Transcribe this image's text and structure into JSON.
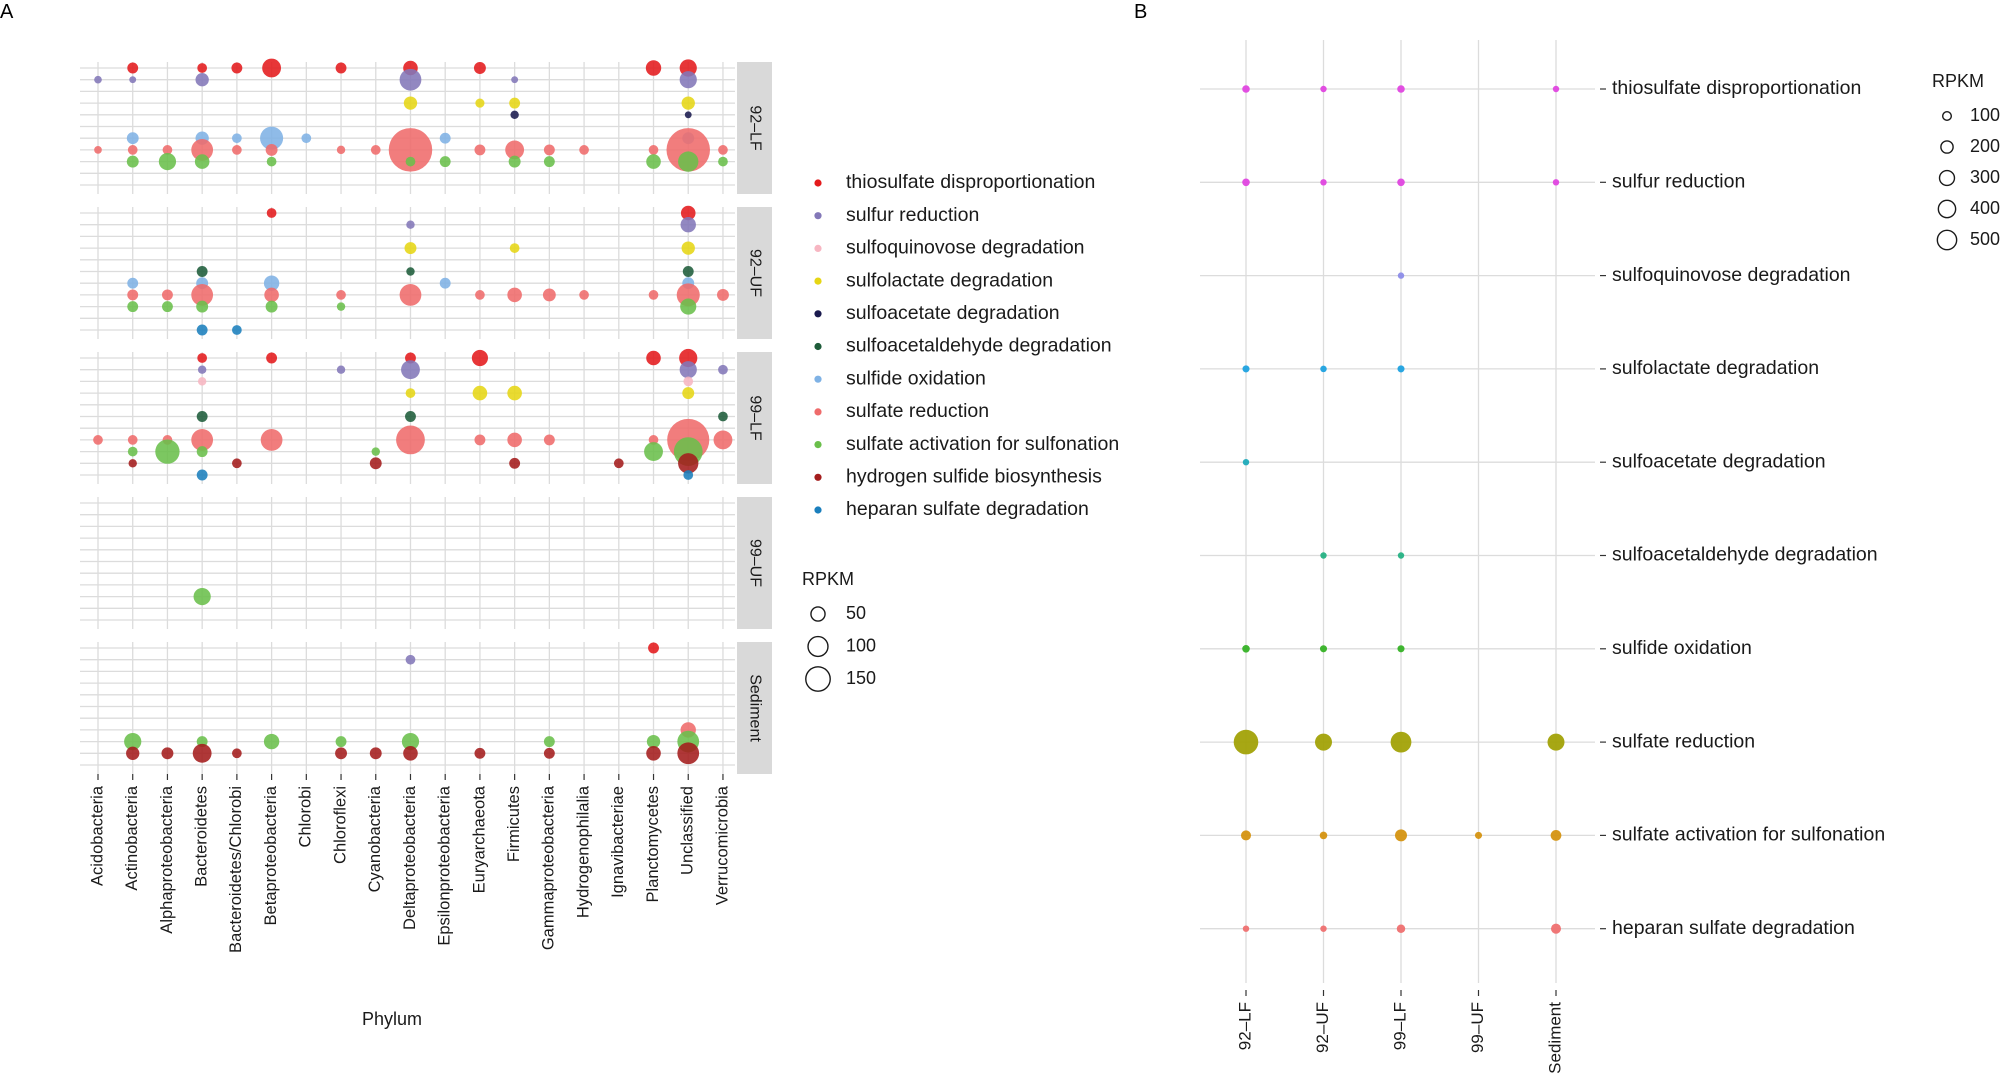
{
  "chart_data": [
    {
      "panel": "A",
      "type": "scatter",
      "xlabel": "Phylum",
      "categories": [
        "Acidobacteria",
        "Actinobacteria",
        "Alphaproteobacteria",
        "Bacteroidetes",
        "Bacteroidetes/Chlorobi",
        "Betaproteobacteria",
        "Chlorobi",
        "Chloroflexi",
        "Cyanobacteria",
        "Deltaproteobacteria",
        "Epsilonproteobacteria",
        "Euryarchaeota",
        "Firmicutes",
        "Gammaproteobacteria",
        "Hydrogenophilalia",
        "Ignavibacteriae",
        "Planctomycetes",
        "Unclassified",
        "Verrucomicrobia"
      ],
      "facets": [
        "92–LF",
        "92–UF",
        "99–LF",
        "99–UF",
        "Sediment"
      ],
      "pathways": [
        "thiosulfate disproportionation",
        "sulfur reduction",
        "sulfoquinovose degradation",
        "sulfolactate degradation",
        "sulfoacetate degradation",
        "sulfoacetaldehyde degradation",
        "sulfide oxidation",
        "sulfate reduction",
        "sulfate activation for sulfonation",
        "hydrogen sulfide biosynthesis",
        "heparan sulfate degradation"
      ],
      "colors": [
        "#e41a1c",
        "#8378b8",
        "#f7b6c2",
        "#e6d614",
        "#1a1a4e",
        "#1e5c3a",
        "#7fb2e5",
        "#ef6b6b",
        "#6abf4b",
        "#a41d1d",
        "#1b7fbd"
      ],
      "legend_title": "RPKM",
      "size_breaks": [
        50,
        100,
        150
      ],
      "size_labels": [
        "50",
        "100",
        "150"
      ],
      "points": [
        {
          "facet": 0,
          "x": 1,
          "p": 0,
          "v": 10
        },
        {
          "facet": 0,
          "x": 3,
          "p": 0,
          "v": 8
        },
        {
          "facet": 0,
          "x": 4,
          "p": 0,
          "v": 10
        },
        {
          "facet": 0,
          "x": 5,
          "p": 0,
          "v": 30
        },
        {
          "facet": 0,
          "x": 7,
          "p": 0,
          "v": 10
        },
        {
          "facet": 0,
          "x": 9,
          "p": 0,
          "v": 18
        },
        {
          "facet": 0,
          "x": 11,
          "p": 0,
          "v": 12
        },
        {
          "facet": 0,
          "x": 16,
          "p": 0,
          "v": 20
        },
        {
          "facet": 0,
          "x": 17,
          "p": 0,
          "v": 25
        },
        {
          "facet": 0,
          "x": 0,
          "p": 1,
          "v": 5
        },
        {
          "facet": 0,
          "x": 1,
          "p": 1,
          "v": 4
        },
        {
          "facet": 0,
          "x": 3,
          "p": 1,
          "v": 15
        },
        {
          "facet": 0,
          "x": 9,
          "p": 1,
          "v": 40
        },
        {
          "facet": 0,
          "x": 12,
          "p": 1,
          "v": 4
        },
        {
          "facet": 0,
          "x": 17,
          "p": 1,
          "v": 25
        },
        {
          "facet": 0,
          "x": 9,
          "p": 3,
          "v": 15
        },
        {
          "facet": 0,
          "x": 11,
          "p": 3,
          "v": 7
        },
        {
          "facet": 0,
          "x": 12,
          "p": 3,
          "v": 10
        },
        {
          "facet": 0,
          "x": 17,
          "p": 3,
          "v": 15
        },
        {
          "facet": 0,
          "x": 12,
          "p": 4,
          "v": 6
        },
        {
          "facet": 0,
          "x": 17,
          "p": 4,
          "v": 4
        },
        {
          "facet": 0,
          "x": 1,
          "p": 6,
          "v": 12
        },
        {
          "facet": 0,
          "x": 3,
          "p": 6,
          "v": 15
        },
        {
          "facet": 0,
          "x": 4,
          "p": 6,
          "v": 8
        },
        {
          "facet": 0,
          "x": 5,
          "p": 6,
          "v": 45
        },
        {
          "facet": 0,
          "x": 6,
          "p": 6,
          "v": 8
        },
        {
          "facet": 0,
          "x": 10,
          "p": 6,
          "v": 10
        },
        {
          "facet": 0,
          "x": 17,
          "p": 6,
          "v": 12
        },
        {
          "facet": 0,
          "x": 0,
          "p": 7,
          "v": 5
        },
        {
          "facet": 0,
          "x": 1,
          "p": 7,
          "v": 8
        },
        {
          "facet": 0,
          "x": 2,
          "p": 7,
          "v": 8
        },
        {
          "facet": 0,
          "x": 3,
          "p": 7,
          "v": 40
        },
        {
          "facet": 0,
          "x": 4,
          "p": 7,
          "v": 8
        },
        {
          "facet": 0,
          "x": 5,
          "p": 7,
          "v": 12
        },
        {
          "facet": 0,
          "x": 7,
          "p": 7,
          "v": 6
        },
        {
          "facet": 0,
          "x": 8,
          "p": 7,
          "v": 8
        },
        {
          "facet": 0,
          "x": 9,
          "p": 7,
          "v": 160
        },
        {
          "facet": 0,
          "x": 11,
          "p": 7,
          "v": 10
        },
        {
          "facet": 0,
          "x": 12,
          "p": 7,
          "v": 30
        },
        {
          "facet": 0,
          "x": 13,
          "p": 7,
          "v": 10
        },
        {
          "facet": 0,
          "x": 14,
          "p": 7,
          "v": 8
        },
        {
          "facet": 0,
          "x": 16,
          "p": 7,
          "v": 8
        },
        {
          "facet": 0,
          "x": 17,
          "p": 7,
          "v": 160
        },
        {
          "facet": 0,
          "x": 18,
          "p": 7,
          "v": 8
        },
        {
          "facet": 0,
          "x": 1,
          "p": 8,
          "v": 12
        },
        {
          "facet": 0,
          "x": 2,
          "p": 8,
          "v": 25
        },
        {
          "facet": 0,
          "x": 3,
          "p": 8,
          "v": 18
        },
        {
          "facet": 0,
          "x": 5,
          "p": 8,
          "v": 8
        },
        {
          "facet": 0,
          "x": 9,
          "p": 8,
          "v": 8
        },
        {
          "facet": 0,
          "x": 10,
          "p": 8,
          "v": 10
        },
        {
          "facet": 0,
          "x": 12,
          "p": 8,
          "v": 12
        },
        {
          "facet": 0,
          "x": 13,
          "p": 8,
          "v": 10
        },
        {
          "facet": 0,
          "x": 16,
          "p": 8,
          "v": 18
        },
        {
          "facet": 0,
          "x": 17,
          "p": 8,
          "v": 35
        },
        {
          "facet": 0,
          "x": 18,
          "p": 8,
          "v": 8
        },
        {
          "facet": 1,
          "x": 5,
          "p": 0,
          "v": 8
        },
        {
          "facet": 1,
          "x": 17,
          "p": 0,
          "v": 18
        },
        {
          "facet": 1,
          "x": 9,
          "p": 1,
          "v": 6
        },
        {
          "facet": 1,
          "x": 17,
          "p": 1,
          "v": 20
        },
        {
          "facet": 1,
          "x": 9,
          "p": 3,
          "v": 12
        },
        {
          "facet": 1,
          "x": 12,
          "p": 3,
          "v": 8
        },
        {
          "facet": 1,
          "x": 17,
          "p": 3,
          "v": 15
        },
        {
          "facet": 1,
          "x": 3,
          "p": 5,
          "v": 10
        },
        {
          "facet": 1,
          "x": 9,
          "p": 5,
          "v": 6
        },
        {
          "facet": 1,
          "x": 17,
          "p": 5,
          "v": 10
        },
        {
          "facet": 1,
          "x": 1,
          "p": 6,
          "v": 10
        },
        {
          "facet": 1,
          "x": 3,
          "p": 6,
          "v": 12
        },
        {
          "facet": 1,
          "x": 5,
          "p": 6,
          "v": 20
        },
        {
          "facet": 1,
          "x": 10,
          "p": 6,
          "v": 10
        },
        {
          "facet": 1,
          "x": 17,
          "p": 6,
          "v": 12
        },
        {
          "facet": 1,
          "x": 1,
          "p": 7,
          "v": 10
        },
        {
          "facet": 1,
          "x": 2,
          "p": 7,
          "v": 10
        },
        {
          "facet": 1,
          "x": 3,
          "p": 7,
          "v": 40
        },
        {
          "facet": 1,
          "x": 5,
          "p": 7,
          "v": 18
        },
        {
          "facet": 1,
          "x": 7,
          "p": 7,
          "v": 8
        },
        {
          "facet": 1,
          "x": 9,
          "p": 7,
          "v": 40
        },
        {
          "facet": 1,
          "x": 11,
          "p": 7,
          "v": 8
        },
        {
          "facet": 1,
          "x": 12,
          "p": 7,
          "v": 18
        },
        {
          "facet": 1,
          "x": 13,
          "p": 7,
          "v": 14
        },
        {
          "facet": 1,
          "x": 14,
          "p": 7,
          "v": 8
        },
        {
          "facet": 1,
          "x": 16,
          "p": 7,
          "v": 8
        },
        {
          "facet": 1,
          "x": 17,
          "p": 7,
          "v": 45
        },
        {
          "facet": 1,
          "x": 18,
          "p": 7,
          "v": 12
        },
        {
          "facet": 1,
          "x": 1,
          "p": 8,
          "v": 10
        },
        {
          "facet": 1,
          "x": 2,
          "p": 8,
          "v": 10
        },
        {
          "facet": 1,
          "x": 3,
          "p": 8,
          "v": 12
        },
        {
          "facet": 1,
          "x": 5,
          "p": 8,
          "v": 12
        },
        {
          "facet": 1,
          "x": 7,
          "p": 8,
          "v": 6
        },
        {
          "facet": 1,
          "x": 17,
          "p": 8,
          "v": 22
        },
        {
          "facet": 1,
          "x": 3,
          "p": 10,
          "v": 10
        },
        {
          "facet": 1,
          "x": 4,
          "p": 10,
          "v": 8
        },
        {
          "facet": 2,
          "x": 3,
          "p": 0,
          "v": 8
        },
        {
          "facet": 2,
          "x": 5,
          "p": 0,
          "v": 10
        },
        {
          "facet": 2,
          "x": 9,
          "p": 0,
          "v": 10
        },
        {
          "facet": 2,
          "x": 11,
          "p": 0,
          "v": 22
        },
        {
          "facet": 2,
          "x": 16,
          "p": 0,
          "v": 18
        },
        {
          "facet": 2,
          "x": 17,
          "p": 0,
          "v": 28
        },
        {
          "facet": 2,
          "x": 3,
          "p": 1,
          "v": 6
        },
        {
          "facet": 2,
          "x": 7,
          "p": 1,
          "v": 6
        },
        {
          "facet": 2,
          "x": 9,
          "p": 1,
          "v": 30
        },
        {
          "facet": 2,
          "x": 17,
          "p": 1,
          "v": 25
        },
        {
          "facet": 2,
          "x": 18,
          "p": 1,
          "v": 8
        },
        {
          "facet": 2,
          "x": 3,
          "p": 2,
          "v": 6
        },
        {
          "facet": 2,
          "x": 17,
          "p": 2,
          "v": 8
        },
        {
          "facet": 2,
          "x": 9,
          "p": 3,
          "v": 8
        },
        {
          "facet": 2,
          "x": 11,
          "p": 3,
          "v": 18
        },
        {
          "facet": 2,
          "x": 12,
          "p": 3,
          "v": 18
        },
        {
          "facet": 2,
          "x": 17,
          "p": 3,
          "v": 12
        },
        {
          "facet": 2,
          "x": 3,
          "p": 5,
          "v": 10
        },
        {
          "facet": 2,
          "x": 9,
          "p": 5,
          "v": 10
        },
        {
          "facet": 2,
          "x": 18,
          "p": 5,
          "v": 8
        },
        {
          "facet": 2,
          "x": 0,
          "p": 7,
          "v": 8
        },
        {
          "facet": 2,
          "x": 1,
          "p": 7,
          "v": 8
        },
        {
          "facet": 2,
          "x": 2,
          "p": 7,
          "v": 8
        },
        {
          "facet": 2,
          "x": 3,
          "p": 7,
          "v": 40
        },
        {
          "facet": 2,
          "x": 5,
          "p": 7,
          "v": 40
        },
        {
          "facet": 2,
          "x": 9,
          "p": 7,
          "v": 70
        },
        {
          "facet": 2,
          "x": 11,
          "p": 7,
          "v": 10
        },
        {
          "facet": 2,
          "x": 12,
          "p": 7,
          "v": 18
        },
        {
          "facet": 2,
          "x": 13,
          "p": 7,
          "v": 10
        },
        {
          "facet": 2,
          "x": 16,
          "p": 7,
          "v": 8
        },
        {
          "facet": 2,
          "x": 17,
          "p": 7,
          "v": 150
        },
        {
          "facet": 2,
          "x": 18,
          "p": 7,
          "v": 30
        },
        {
          "facet": 2,
          "x": 1,
          "p": 8,
          "v": 8
        },
        {
          "facet": 2,
          "x": 2,
          "p": 8,
          "v": 50
        },
        {
          "facet": 2,
          "x": 3,
          "p": 8,
          "v": 10
        },
        {
          "facet": 2,
          "x": 8,
          "p": 8,
          "v": 6
        },
        {
          "facet": 2,
          "x": 16,
          "p": 8,
          "v": 30
        },
        {
          "facet": 2,
          "x": 17,
          "p": 8,
          "v": 70
        },
        {
          "facet": 2,
          "x": 1,
          "p": 9,
          "v": 6
        },
        {
          "facet": 2,
          "x": 4,
          "p": 9,
          "v": 8
        },
        {
          "facet": 2,
          "x": 8,
          "p": 9,
          "v": 12
        },
        {
          "facet": 2,
          "x": 12,
          "p": 9,
          "v": 10
        },
        {
          "facet": 2,
          "x": 15,
          "p": 9,
          "v": 8
        },
        {
          "facet": 2,
          "x": 17,
          "p": 9,
          "v": 35
        },
        {
          "facet": 2,
          "x": 3,
          "p": 10,
          "v": 10
        },
        {
          "facet": 2,
          "x": 17,
          "p": 10,
          "v": 8
        },
        {
          "facet": 3,
          "x": 3,
          "p": 8,
          "v": 25
        },
        {
          "facet": 4,
          "x": 16,
          "p": 0,
          "v": 10
        },
        {
          "facet": 4,
          "x": 9,
          "p": 1,
          "v": 8
        },
        {
          "facet": 4,
          "x": 17,
          "p": 7,
          "v": 20
        },
        {
          "facet": 4,
          "x": 1,
          "p": 8,
          "v": 25
        },
        {
          "facet": 4,
          "x": 3,
          "p": 8,
          "v": 10
        },
        {
          "facet": 4,
          "x": 5,
          "p": 8,
          "v": 20
        },
        {
          "facet": 4,
          "x": 7,
          "p": 8,
          "v": 10
        },
        {
          "facet": 4,
          "x": 9,
          "p": 8,
          "v": 25
        },
        {
          "facet": 4,
          "x": 13,
          "p": 8,
          "v": 10
        },
        {
          "facet": 4,
          "x": 16,
          "p": 8,
          "v": 15
        },
        {
          "facet": 4,
          "x": 17,
          "p": 8,
          "v": 40
        },
        {
          "facet": 4,
          "x": 1,
          "p": 9,
          "v": 15
        },
        {
          "facet": 4,
          "x": 2,
          "p": 9,
          "v": 12
        },
        {
          "facet": 4,
          "x": 3,
          "p": 9,
          "v": 30
        },
        {
          "facet": 4,
          "x": 4,
          "p": 9,
          "v": 8
        },
        {
          "facet": 4,
          "x": 7,
          "p": 9,
          "v": 12
        },
        {
          "facet": 4,
          "x": 8,
          "p": 9,
          "v": 12
        },
        {
          "facet": 4,
          "x": 9,
          "p": 9,
          "v": 18
        },
        {
          "facet": 4,
          "x": 11,
          "p": 9,
          "v": 10
        },
        {
          "facet": 4,
          "x": 13,
          "p": 9,
          "v": 10
        },
        {
          "facet": 4,
          "x": 16,
          "p": 9,
          "v": 18
        },
        {
          "facet": 4,
          "x": 17,
          "p": 9,
          "v": 40
        }
      ]
    },
    {
      "panel": "B",
      "type": "scatter",
      "xlabel": "",
      "categories": [
        "92–LF",
        "92–UF",
        "99–LF",
        "99–UF",
        "Sediment"
      ],
      "pathways": [
        "thiosulfate disproportionation",
        "sulfur reduction",
        "sulfoquinovose degradation",
        "sulfolactate degradation",
        "sulfoacetate degradation",
        "sulfoacetaldehyde degradation",
        "sulfide oxidation",
        "sulfate reduction",
        "sulfate activation for sulfonation",
        "heparan sulfate degradation"
      ],
      "colors": [
        "#e040e0",
        "#e040e0",
        "#8a8ae8",
        "#18a0e0",
        "#18a8b8",
        "#20b080",
        "#30b020",
        "#a0a000",
        "#d4900a",
        "#ef6b6b"
      ],
      "legend_title": "RPKM",
      "size_breaks": [
        100,
        200,
        300,
        400,
        500
      ],
      "size_labels": [
        "100",
        "200",
        "300",
        "400",
        "500"
      ],
      "values": [
        [
          40,
          25,
          40,
          0,
          15
        ],
        [
          40,
          25,
          40,
          0,
          10
        ],
        [
          0,
          0,
          15,
          0,
          0
        ],
        [
          35,
          30,
          35,
          0,
          0
        ],
        [
          15,
          0,
          0,
          0,
          0
        ],
        [
          0,
          15,
          15,
          0,
          0
        ],
        [
          40,
          35,
          35,
          0,
          0
        ],
        [
          420,
          200,
          300,
          0,
          200
        ],
        [
          70,
          40,
          100,
          35,
          80
        ],
        [
          20,
          20,
          50,
          0,
          70
        ]
      ]
    }
  ],
  "panel_labels": [
    "A",
    "B"
  ]
}
